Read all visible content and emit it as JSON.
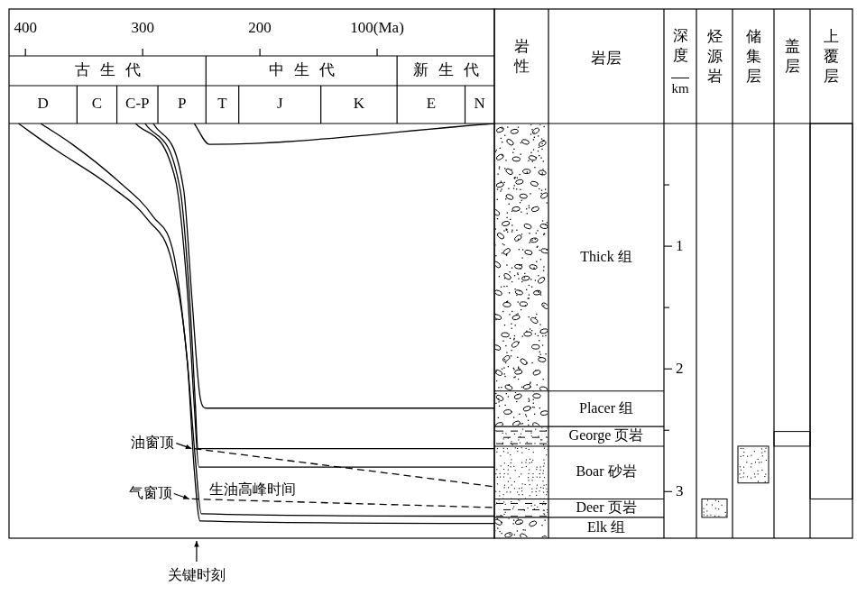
{
  "chart_data": {
    "type": "line",
    "xlim": [
      414,
      0
    ],
    "xticks": [
      400,
      300,
      200,
      {
        "value": 100,
        "label": "100(Ma)"
      }
    ],
    "ylim": [
      0,
      3.38
    ],
    "yticks": [
      1,
      2,
      3
    ],
    "grid": false,
    "eras": [
      {
        "name": "古生代",
        "start": 414,
        "end": 246
      },
      {
        "name": "中生代",
        "start": 246,
        "end": 83
      },
      {
        "name": "新生代",
        "start": 83,
        "end": 0
      }
    ],
    "periods": [
      {
        "name": "D",
        "start": 414,
        "end": 356
      },
      {
        "name": "C",
        "start": 356,
        "end": 322
      },
      {
        "name": "C-P",
        "start": 322,
        "end": 287
      },
      {
        "name": "P",
        "start": 287,
        "end": 246
      },
      {
        "name": "T",
        "start": 246,
        "end": 218
      },
      {
        "name": "J",
        "start": 218,
        "end": 148
      },
      {
        "name": "K",
        "start": 148,
        "end": 83
      },
      {
        "name": "E",
        "start": 83,
        "end": 25
      },
      {
        "name": "N",
        "start": 25,
        "end": 0
      }
    ],
    "series": [
      {
        "color": "#000000",
        "line_style": "solid",
        "x": [
          406,
          375,
          329,
          295,
          275,
          262,
          256,
          251,
          0
        ],
        "values": [
          0,
          0.21,
          0.5,
          0.79,
          1.13,
          1.93,
          2.82,
          3.24,
          3.26
        ]
      },
      {
        "color": "#000000",
        "line_style": "solid",
        "x": [
          387,
          360,
          322,
          291,
          273,
          262,
          255,
          250,
          0
        ],
        "values": [
          0,
          0.17,
          0.46,
          0.76,
          1.09,
          1.93,
          2.74,
          3.18,
          3.2
        ]
      },
      {
        "color": "#000000",
        "line_style": "solid",
        "x": [
          306,
          272,
          262,
          256,
          252,
          0
        ],
        "values": [
          0,
          0.46,
          1.35,
          2.3,
          2.8,
          2.8
        ]
      },
      {
        "color": "#000000",
        "line_style": "solid",
        "x": [
          298,
          268,
          260,
          255,
          253,
          0
        ],
        "values": [
          0,
          0.54,
          1.42,
          2.3,
          2.65,
          2.65
        ]
      },
      {
        "color": "#000000",
        "line_style": "solid",
        "x": [
          291,
          265,
          258,
          251,
          246,
          0
        ],
        "values": [
          0,
          0.54,
          1.42,
          2.23,
          2.32,
          2.32
        ]
      },
      {
        "color": "#000000",
        "line_style": "solid",
        "x": [
          256,
          243,
          0
        ],
        "values": [
          0,
          0.17,
          0
        ]
      },
      {
        "color": "#000000",
        "line_style": "dashed",
        "x": [
          256,
          0
        ],
        "values": [
          2.65,
          2.96
        ]
      },
      {
        "color": "#000000",
        "line_style": "dashed",
        "x": [
          258,
          0
        ],
        "values": [
          3.06,
          3.13
        ]
      }
    ],
    "annotations": [
      {
        "text": "油窗顶",
        "x": 256,
        "y": 2.65,
        "marker": "arrow"
      },
      {
        "text": "气窗顶",
        "x": 258,
        "y": 3.06,
        "marker": "arrow"
      },
      {
        "text": "生油高峰时间",
        "x": 248,
        "y": 2.99
      },
      {
        "text": "关键时刻",
        "x": 254,
        "marker": "arrow"
      }
    ],
    "column_headers": {
      "lithology": "岩性",
      "formation": "岩层",
      "depth": "深度",
      "depth_unit": "km"
    },
    "formations": [
      {
        "name": "Thick 组",
        "top": 0,
        "bottom": 2.18
      },
      {
        "name": "Placer 组",
        "top": 2.18,
        "bottom": 2.47
      },
      {
        "name": "George 页岩",
        "top": 2.47,
        "bottom": 2.63
      },
      {
        "name": "Boar 砂岩",
        "top": 2.63,
        "bottom": 3.06
      },
      {
        "name": "Deer 页岩",
        "top": 3.06,
        "bottom": 3.21
      },
      {
        "name": "Elk 组",
        "top": 3.21,
        "bottom": 3.38
      }
    ],
    "elements": [
      {
        "name": "烃源岩",
        "top": 3.06,
        "bottom": 3.21
      },
      {
        "name": "储集层",
        "top": 2.63,
        "bottom": 2.93
      },
      {
        "name": "盖层",
        "top": 2.51,
        "bottom": 2.63
      },
      {
        "name": "上覆层",
        "top": 0,
        "bottom": 3.06
      }
    ]
  }
}
